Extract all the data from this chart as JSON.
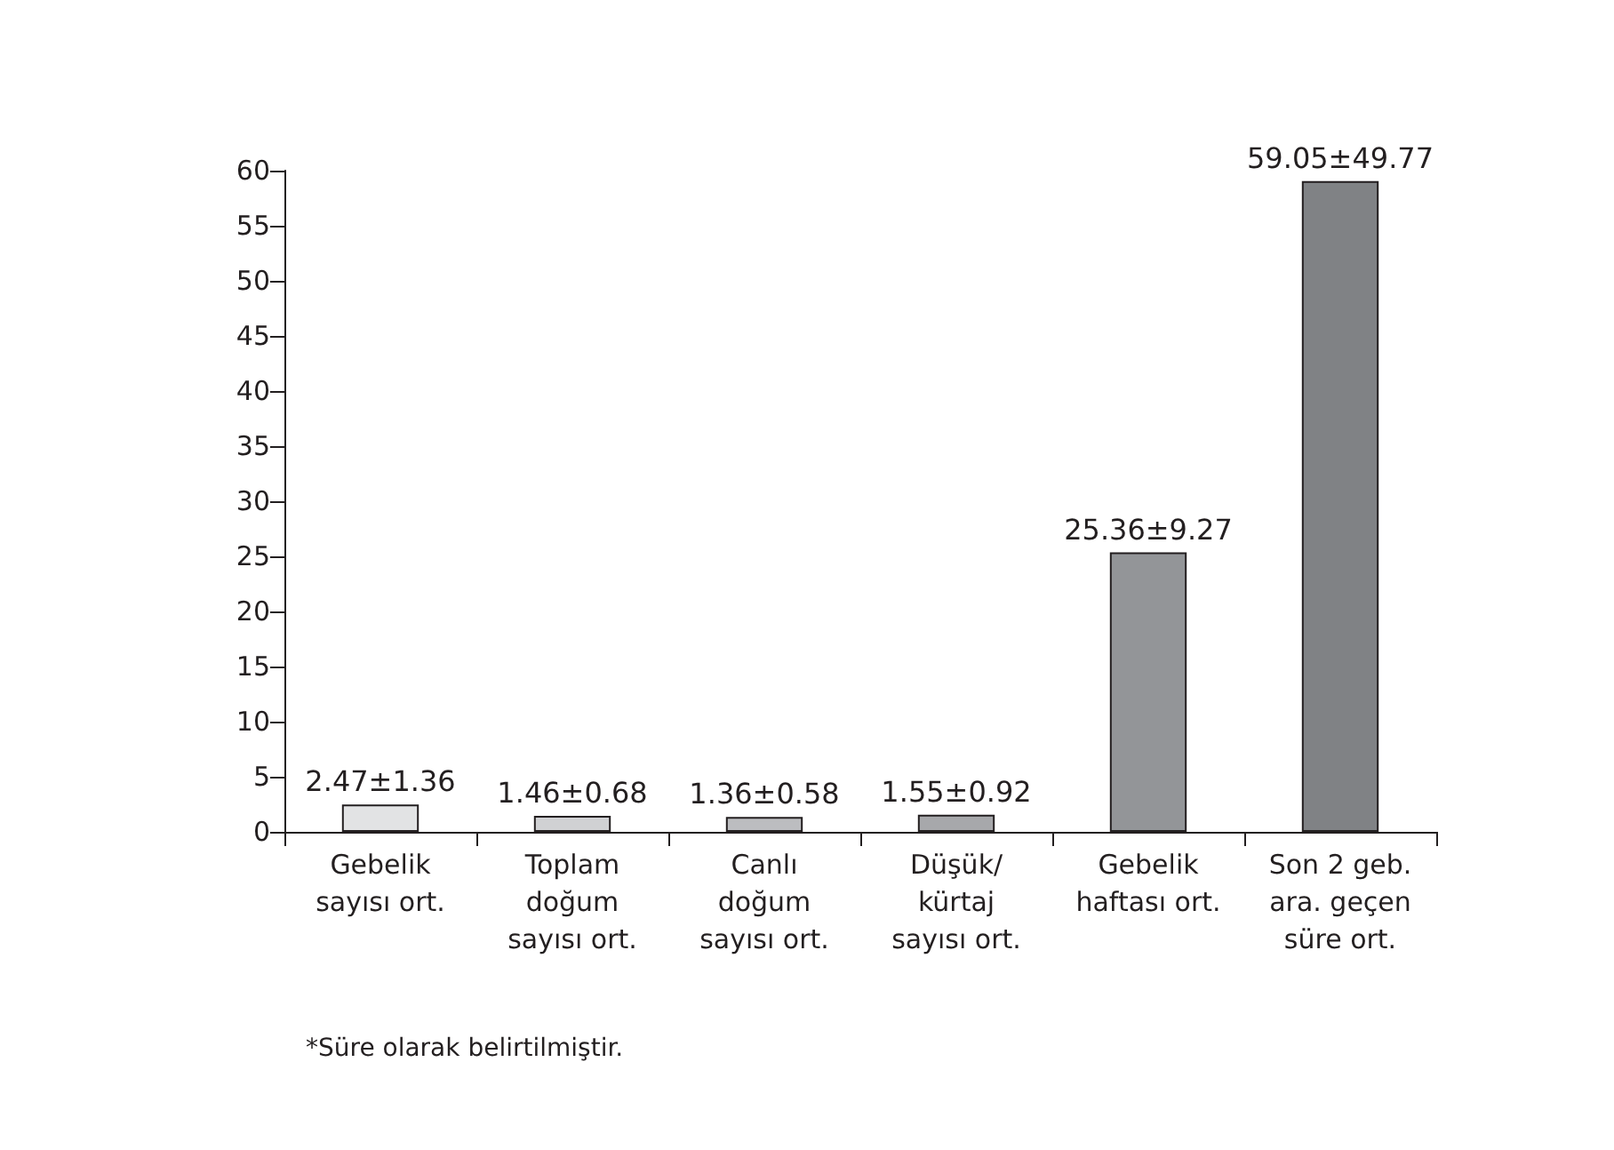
{
  "chart_data": {
    "type": "bar",
    "categories": [
      "Gebelik\nsayısı ort.",
      "Toplam\ndoğum\nsayısı ort.",
      "Canlı\ndoğum\nsayısı ort.",
      "Düşük/\nkürtaj\nsayısı ort.",
      "Gebelik\nhaftası ort.",
      "Son 2 geb.\nara. geçen\nsüre ort."
    ],
    "values": [
      2.47,
      1.46,
      1.36,
      1.55,
      25.36,
      59.05
    ],
    "colors": [
      "#e2e3e4",
      "#d0d1d3",
      "#bcbdc0",
      "#a7a8ab",
      "#939598",
      "#808285"
    ],
    "value_labels": [
      "2.47±1.36",
      "1.46±0.68",
      "1.36±0.58",
      "1.55±0.92",
      "25.36±9.27",
      "59.05±49.77"
    ],
    "ylim": [
      0,
      60
    ],
    "yticks": [
      0,
      5,
      10,
      15,
      20,
      25,
      30,
      35,
      40,
      45,
      50,
      55,
      60
    ],
    "grid": false,
    "annotations": [
      "*Süre olarak belirtilmiştir."
    ]
  }
}
